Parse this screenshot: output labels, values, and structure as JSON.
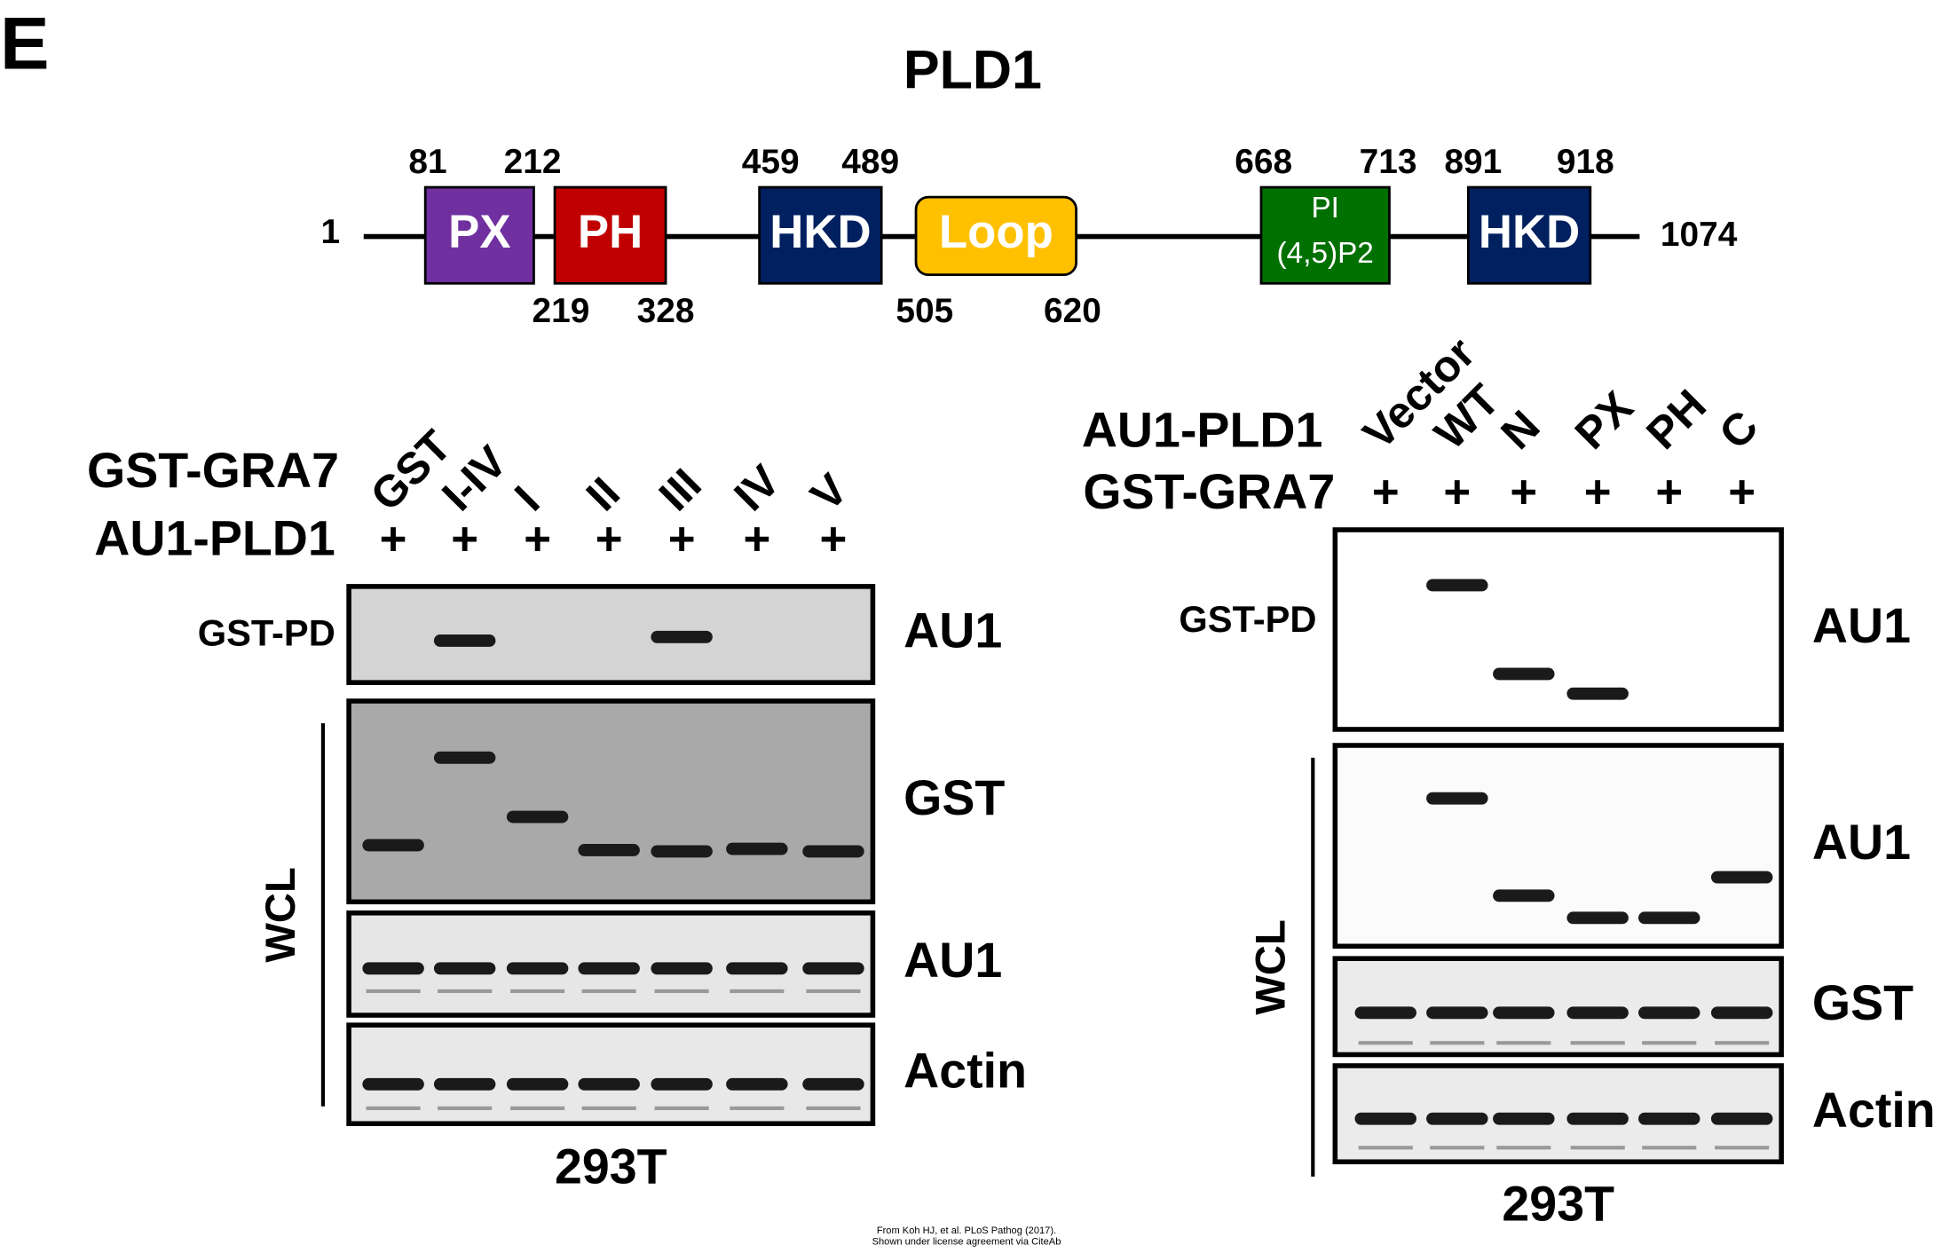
{
  "panel_label": "E",
  "diagram": {
    "title": "PLD1",
    "start": "1",
    "end": "1074",
    "domains": [
      {
        "label": "PX",
        "start": "81",
        "end": "212"
      },
      {
        "label": "PH",
        "start": "219",
        "end": "328"
      },
      {
        "label": "HKD",
        "start": "459",
        "end": "489"
      },
      {
        "label": "Loop",
        "start": "505",
        "end": "620"
      },
      {
        "label": "PI",
        "sublabel": "(4,5)P2",
        "start": "668",
        "end": "713"
      },
      {
        "label": "HKD",
        "start": "891",
        "end": "918"
      }
    ]
  },
  "left_blot": {
    "lane_row": {
      "name": "GST-GRA7",
      "lanes": [
        "GST",
        "I-IV",
        "I",
        "II",
        "III",
        "IV",
        "V"
      ]
    },
    "plus_row": {
      "name": "AU1-PLD1",
      "marks": [
        "+",
        "+",
        "+",
        "+",
        "+",
        "+",
        "+"
      ]
    },
    "pulldown": "GST-PD",
    "group": "WCL",
    "blots": [
      "AU1",
      "GST",
      "AU1",
      "Actin"
    ],
    "cell_line": "293T"
  },
  "right_blot": {
    "lane_row": {
      "name": "AU1-PLD1",
      "lanes": [
        "Vector",
        "WT",
        "N",
        "PX",
        "PH",
        "C"
      ]
    },
    "plus_row": {
      "name": "GST-GRA7",
      "marks": [
        "+",
        "+",
        "+",
        "+",
        "+",
        "+"
      ]
    },
    "pulldown": "GST-PD",
    "group": "WCL",
    "blots": [
      "AU1",
      "AU1",
      "GST",
      "Actin"
    ],
    "cell_line": "293T"
  },
  "credit": [
    "From Koh HJ, et al. PLoS Pathog (2017).",
    "Shown under license agreement via CiteAb"
  ]
}
